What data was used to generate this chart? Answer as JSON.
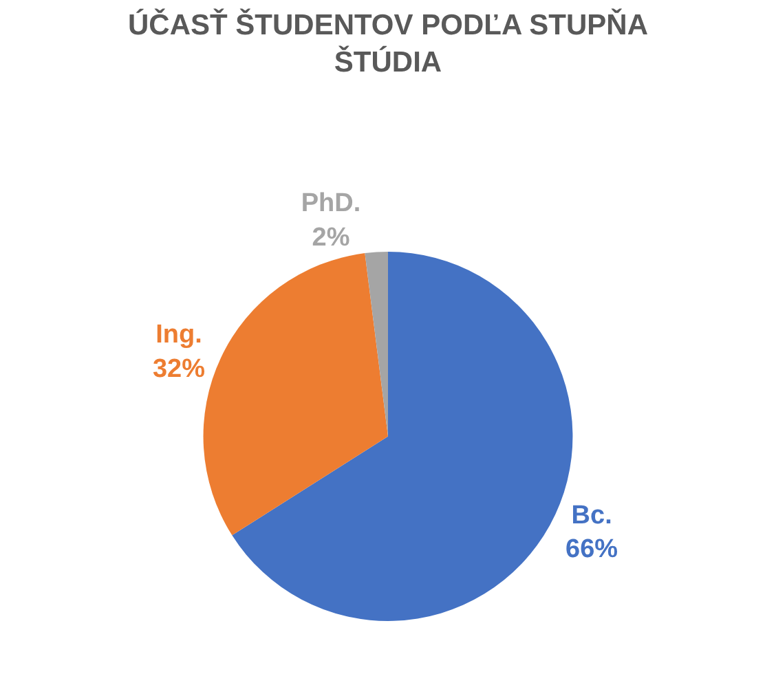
{
  "chart_data": {
    "type": "pie",
    "title": "ÚČASŤ ŠTUDENTOV PODĽA STUPŇA ŠTÚDIA",
    "categories": [
      "Bc.",
      "Ing.",
      "PhD."
    ],
    "values": [
      66,
      32,
      2
    ],
    "value_labels": [
      "66%",
      "32%",
      "2%"
    ],
    "colors": [
      "#4472c4",
      "#ed7d31",
      "#a5a5a5"
    ],
    "legend": false
  }
}
